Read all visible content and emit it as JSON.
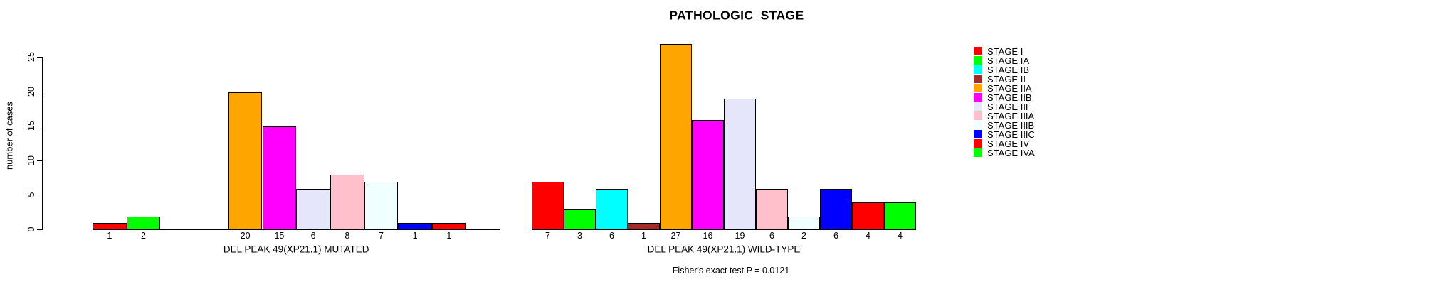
{
  "title": "PATHOLOGIC_STAGE",
  "footer_note": "Fisher's exact test P = 0.0121",
  "y_axis": {
    "label": "number of cases",
    "ticks": [
      "0",
      "5",
      "10",
      "15",
      "20",
      "25"
    ],
    "range": [
      0,
      25
    ]
  },
  "chart_data": [
    {
      "type": "bar",
      "name": "mutated",
      "xlabel": "DEL PEAK 49(XP21.1) MUTATED",
      "categories": [
        "STAGE I",
        "STAGE IA",
        "STAGE IB",
        "STAGE II",
        "STAGE IIA",
        "STAGE IIB",
        "STAGE III",
        "STAGE IIIA",
        "STAGE IIIB",
        "STAGE IIIC",
        "STAGE IV",
        "STAGE IVA"
      ],
      "values": [
        1,
        2,
        0,
        0,
        20,
        15,
        6,
        8,
        7,
        1,
        1,
        0
      ],
      "bar_value_labels": [
        "1",
        "2",
        "",
        "",
        "20",
        "15",
        "6",
        "8",
        "7",
        "1",
        "1",
        ""
      ],
      "bar_colors": [
        "#FF0000",
        "#00FF00",
        "#00FFFF",
        "#A52A2A",
        "#FFA500",
        "#FF00FF",
        "#E6E6FA",
        "#FFC0CB",
        "#F0FFFF",
        "#0000FF",
        "#FF0000",
        "#00FF00"
      ],
      "ylim": [
        0,
        25
      ],
      "grid": false,
      "show_yaxis": true
    },
    {
      "type": "bar",
      "name": "wild-type",
      "xlabel": "DEL PEAK 49(XP21.1) WILD-TYPE",
      "categories": [
        "STAGE I",
        "STAGE IA",
        "STAGE IB",
        "STAGE II",
        "STAGE IIA",
        "STAGE IIB",
        "STAGE III",
        "STAGE IIIA",
        "STAGE IIIB",
        "STAGE IIIC",
        "STAGE IV",
        "STAGE IVA"
      ],
      "values": [
        7,
        3,
        6,
        1,
        27,
        16,
        19,
        6,
        2,
        6,
        4,
        4
      ],
      "bar_value_labels": [
        "7",
        "3",
        "6",
        "1",
        "27",
        "16",
        "19",
        "6",
        "2",
        "6",
        "4",
        "4"
      ],
      "bar_colors": [
        "#FF0000",
        "#00FF00",
        "#00FFFF",
        "#A52A2A",
        "#FFA500",
        "#FF00FF",
        "#E6E6FA",
        "#FFC0CB",
        "#F0FFFF",
        "#0000FF",
        "#FF0000",
        "#00FF00"
      ],
      "ylim": [
        0,
        25
      ],
      "grid": false,
      "show_yaxis": false
    }
  ],
  "legend": {
    "position": "right",
    "items": [
      {
        "label": "STAGE I",
        "color": "#FF0000"
      },
      {
        "label": "STAGE IA",
        "color": "#00FF00"
      },
      {
        "label": "STAGE IB",
        "color": "#00FFFF"
      },
      {
        "label": "STAGE II",
        "color": "#A52A2A"
      },
      {
        "label": "STAGE IIA",
        "color": "#FFA500"
      },
      {
        "label": "STAGE IIB",
        "color": "#FF00FF"
      },
      {
        "label": "STAGE III",
        "color": "#E6E6FA"
      },
      {
        "label": "STAGE IIIA",
        "color": "#FFC0CB"
      },
      {
        "label": "STAGE IIIB",
        "color": "#F0FFFF"
      },
      {
        "label": "STAGE IIIC",
        "color": "#0000FF"
      },
      {
        "label": "STAGE IV",
        "color": "#FF0000"
      },
      {
        "label": "STAGE IVA",
        "color": "#00FF00"
      }
    ]
  }
}
